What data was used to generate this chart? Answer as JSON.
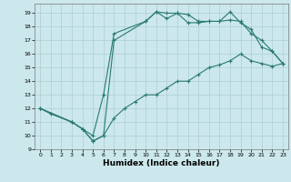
{
  "bg_color": "#cce8ec",
  "grid_color": "#aacfd4",
  "line_color": "#2a7a6f",
  "marker": "+",
  "markersize": 3,
  "linewidth": 0.8,
  "xlabel": "Humidex (Indice chaleur)",
  "xlabel_fontsize": 6.5,
  "xlabel_fontweight": "bold",
  "xlim": [
    -0.5,
    23.5
  ],
  "ylim": [
    9,
    19.7
  ],
  "yticks": [
    9,
    10,
    11,
    12,
    13,
    14,
    15,
    16,
    17,
    18,
    19
  ],
  "xticks": [
    0,
    1,
    2,
    3,
    4,
    5,
    6,
    7,
    8,
    9,
    10,
    11,
    12,
    13,
    14,
    15,
    16,
    17,
    18,
    19,
    20,
    21,
    22,
    23
  ],
  "tick_fontsize": 4.5,
  "line1_x": [
    0,
    1,
    3,
    4,
    5,
    6,
    7,
    10,
    11,
    12,
    13,
    14,
    15,
    16,
    17,
    18,
    19,
    20,
    21,
    22,
    23
  ],
  "line1_y": [
    12,
    11.6,
    11,
    10.5,
    9.6,
    10,
    17,
    18.4,
    19.1,
    19,
    19,
    18.9,
    18.4,
    18.4,
    18.4,
    18.5,
    18.4,
    17.5,
    17,
    16.2,
    15.3
  ],
  "line2_x": [
    0,
    3,
    4,
    5,
    6,
    7,
    10,
    11,
    12,
    13,
    14,
    15,
    16,
    17,
    18,
    19,
    20,
    21,
    22,
    23
  ],
  "line2_y": [
    12,
    11,
    10.5,
    10,
    13,
    17.5,
    18.4,
    19.1,
    18.6,
    19,
    18.3,
    18.3,
    18.4,
    18.4,
    19.1,
    18.3,
    17.8,
    16.5,
    16.2,
    15.3
  ],
  "line3_x": [
    0,
    3,
    4,
    5,
    6,
    7,
    8,
    9,
    10,
    11,
    12,
    13,
    14,
    15,
    16,
    17,
    18,
    19,
    20,
    21,
    22,
    23
  ],
  "line3_y": [
    12,
    11,
    10.5,
    9.6,
    10,
    11.3,
    12,
    12.5,
    13,
    13,
    13.5,
    14,
    14,
    14.5,
    15,
    15.2,
    15.5,
    16,
    15.5,
    15.3,
    15.1,
    15.3
  ]
}
